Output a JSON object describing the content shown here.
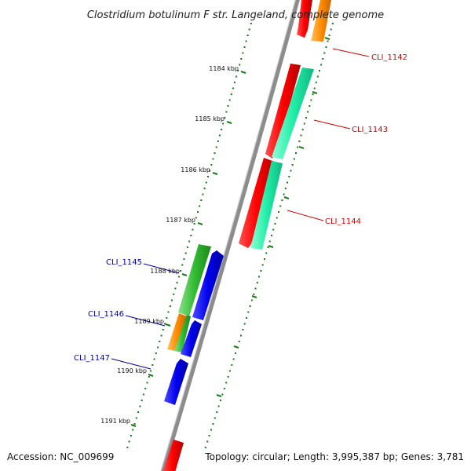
{
  "title": "Clostridium botulinum F str. Langeland, complete genome",
  "accession": "Accession: NC_009699",
  "topology": "Topology: circular; Length: 3,995,387 bp; Genes: 3,781",
  "ticks": [
    "1184 kbp",
    "1185 kbp",
    "1186 kbp",
    "1187 kbp",
    "1188 kbp",
    "1189 kbp",
    "1190 kbp",
    "1191 kbp"
  ],
  "genes": [
    {
      "label": "CLI_1142",
      "strand": "forward",
      "color": "#d40000"
    },
    {
      "label": "CLI_1143",
      "strand": "forward",
      "color": "#d40000"
    },
    {
      "label": "CLI_1144",
      "strand": "forward",
      "color": "#d40000"
    },
    {
      "label": "CLI_1145",
      "strand": "reverse",
      "color": "#0000aa"
    },
    {
      "label": "CLI_1146",
      "strand": "reverse",
      "color": "#0000aa"
    },
    {
      "label": "CLI_1147",
      "strand": "reverse",
      "color": "#0000aa"
    }
  ],
  "colors": {
    "backbone": "#8c8c8c",
    "tick": "#1a7a1a",
    "forward_cds": "#ff0000",
    "forward_rna": "#ff8c00",
    "forward_feature": "#1ee8a0",
    "reverse_cds": "#0000ee",
    "reverse_feature": "#33bb33",
    "reverse_rna": "#ff8c00"
  }
}
